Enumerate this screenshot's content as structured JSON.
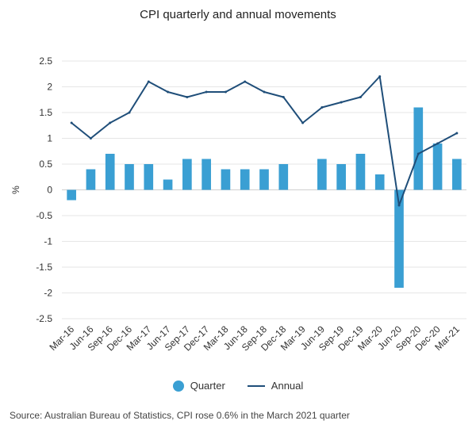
{
  "chart_data": {
    "type": "bar",
    "title": "CPI quarterly and annual movements",
    "ylabel": "%",
    "xlabel": "",
    "ylim": [
      -2.5,
      2.5
    ],
    "yticks": [
      2.5,
      2,
      1.5,
      1,
      0.5,
      0,
      -0.5,
      -1,
      -1.5,
      -2,
      -2.5
    ],
    "ytick_labels": [
      "2.5",
      "2",
      "1.5",
      "1",
      "0.5",
      "0",
      "-0.5",
      "-1",
      "-1.5",
      "-2",
      "-2.5"
    ],
    "grid": true,
    "legend_position": "bottom",
    "categories": [
      "Mar-16",
      "Jun-16",
      "Sep-16",
      "Dec-16",
      "Mar-17",
      "Jun-17",
      "Sep-17",
      "Dec-17",
      "Mar-18",
      "Jun-18",
      "Sep-18",
      "Dec-18",
      "Mar-19",
      "Jun-19",
      "Sep-19",
      "Dec-19",
      "Mar-20",
      "Jun-20",
      "Sep-20",
      "Dec-20",
      "Mar-21"
    ],
    "series": [
      {
        "name": "Quarter",
        "type": "bar",
        "color": "#3a9fd3",
        "values": [
          -0.2,
          0.4,
          0.7,
          0.5,
          0.5,
          0.2,
          0.6,
          0.6,
          0.4,
          0.4,
          0.4,
          0.5,
          0.0,
          0.6,
          0.5,
          0.7,
          0.3,
          -1.9,
          1.6,
          0.9,
          0.6
        ]
      },
      {
        "name": "Annual",
        "type": "line",
        "color": "#1f4e79",
        "values": [
          1.3,
          1.0,
          1.3,
          1.5,
          2.1,
          1.9,
          1.8,
          1.9,
          1.9,
          2.1,
          1.9,
          1.8,
          1.3,
          1.6,
          1.7,
          1.8,
          2.2,
          -0.3,
          0.7,
          0.9,
          1.1
        ]
      }
    ]
  },
  "source_note": "Source: Australian Bureau of Statistics, CPI rose 0.6% in the March 2021 quarter"
}
